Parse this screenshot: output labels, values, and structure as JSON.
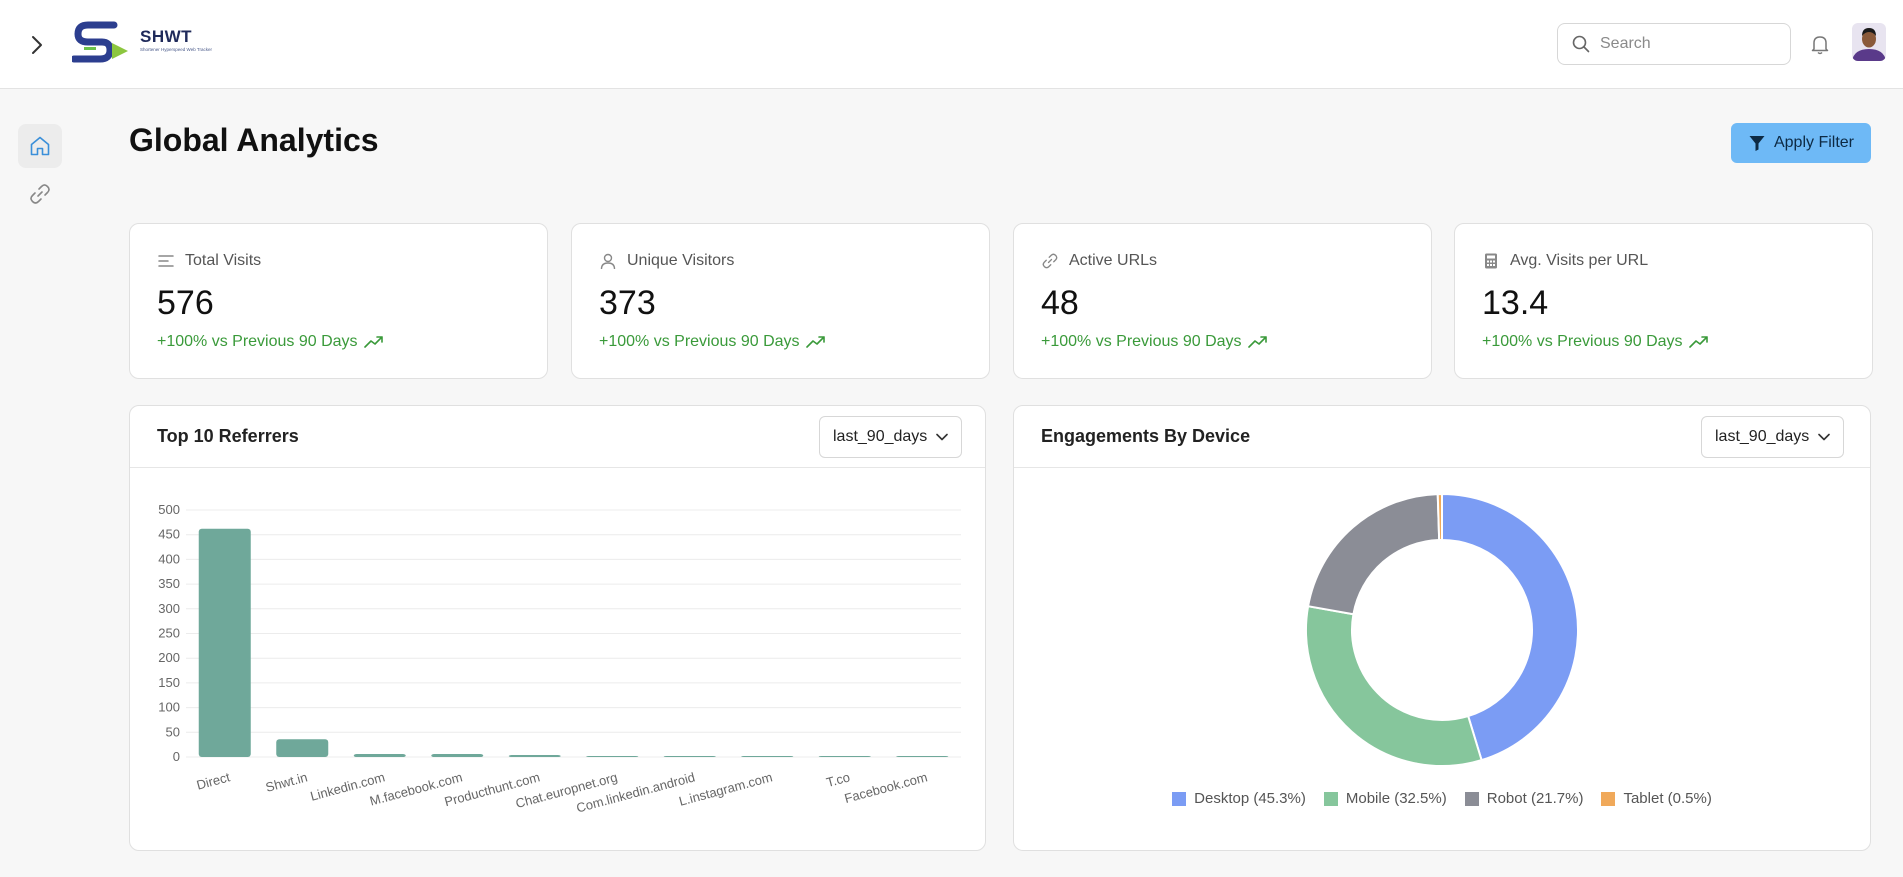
{
  "header": {
    "brand": "SHWT",
    "brand_tagline": "Shortener Hyperspeed Web Tracker",
    "search_placeholder": "Search"
  },
  "page": {
    "title": "Global Analytics",
    "apply_filter_label": "Apply Filter"
  },
  "stats": [
    {
      "label": "Total Visits",
      "value": "576",
      "change": "+100% vs Previous 90 Days",
      "icon": "list-icon"
    },
    {
      "label": "Unique Visitors",
      "value": "373",
      "change": "+100% vs Previous 90 Days",
      "icon": "user-icon"
    },
    {
      "label": "Active URLs",
      "value": "48",
      "change": "+100% vs Previous 90 Days",
      "icon": "link-icon"
    },
    {
      "label": "Avg. Visits per URL",
      "value": "13.4",
      "change": "+100% vs Previous 90 Days",
      "icon": "calculator-icon"
    }
  ],
  "referrers_panel": {
    "title": "Top 10 Referrers",
    "range": "last_90_days"
  },
  "devices_panel": {
    "title": "Engagements By Device",
    "range": "last_90_days"
  },
  "colors": {
    "bar": "#6fa89a",
    "desktop": "#7b9cf4",
    "mobile": "#86c69c",
    "robot": "#8b8d96",
    "tablet": "#f0a95a",
    "positive": "#3a9a3a",
    "accent": "#6eb9f6"
  },
  "chart_data": [
    {
      "type": "bar",
      "categories": [
        "Direct",
        "Shwt.in",
        "Linkedin.com",
        "M.facebook.com",
        "Producthunt.com",
        "Chat.europnet.org",
        "Com.linkedin.android",
        "L.instagram.com",
        "T.co",
        "Facebook.com"
      ],
      "values": [
        462,
        36,
        6,
        6,
        4,
        2,
        2,
        1,
        1,
        1
      ],
      "ylim": [
        0,
        500
      ],
      "yticks": [
        0,
        50,
        100,
        150,
        200,
        250,
        300,
        350,
        400,
        450,
        500
      ],
      "grid": true
    },
    {
      "type": "pie",
      "donut": true,
      "series": [
        {
          "name": "Desktop (45.3%)",
          "value": 45.3
        },
        {
          "name": "Mobile (32.5%)",
          "value": 32.5
        },
        {
          "name": "Robot (21.7%)",
          "value": 21.7
        },
        {
          "name": "Tablet (0.5%)",
          "value": 0.5
        }
      ],
      "legend": "bottom"
    }
  ]
}
